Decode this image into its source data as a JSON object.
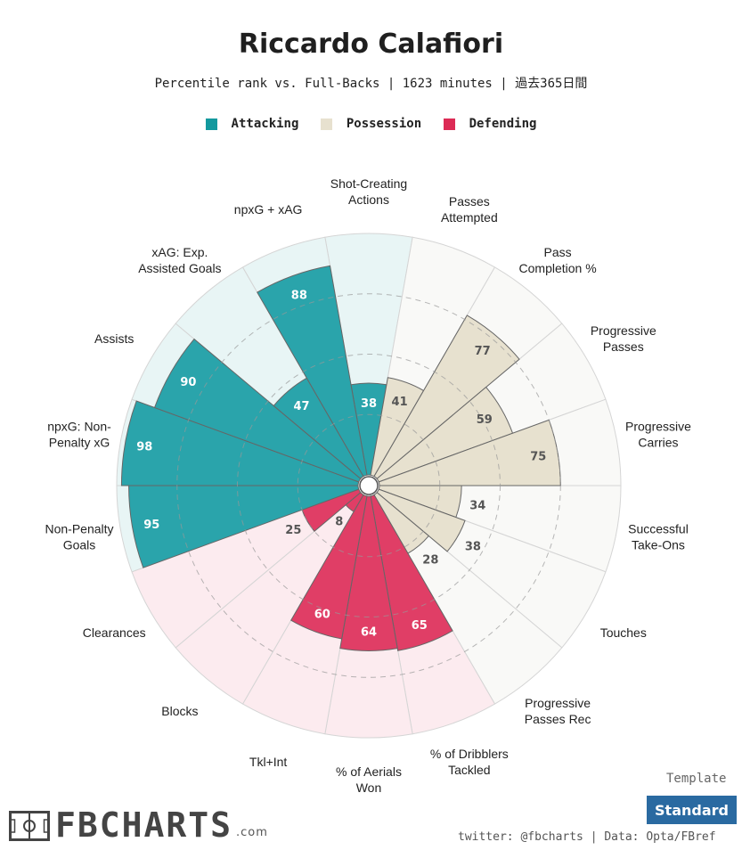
{
  "title": "Riccardo Calafiori",
  "subtitle": "Percentile rank vs. Full-Backs | 1623 minutes | 過去365日間",
  "legend": [
    {
      "label": "Attacking",
      "color": "#2aa4ab"
    },
    {
      "label": "Possession",
      "color": "#e7e1cf"
    },
    {
      "label": "Defending",
      "color": "#e03e66"
    }
  ],
  "colors": {
    "attacking_fill": "#2aa4ab",
    "attacking_bg": "#e8f5f5",
    "possession_fill": "#e7e1cf",
    "possession_bg": "#f9f9f7",
    "defending_fill": "#e03e66",
    "defending_bg": "#fcebef"
  },
  "chart_data": {
    "type": "polar-bar",
    "title": "Riccardo Calafiori",
    "range": [
      0,
      100
    ],
    "rings": [
      25,
      50,
      75
    ],
    "metrics": [
      {
        "label": "Shot-Creating Actions",
        "value": 38,
        "group": "Attacking"
      },
      {
        "label": "Passes Attempted",
        "value": 41,
        "group": "Possession"
      },
      {
        "label": "Pass Completion %",
        "value": 77,
        "group": "Possession"
      },
      {
        "label": "Progressive Passes",
        "value": 59,
        "group": "Possession"
      },
      {
        "label": "Progressive Carries",
        "value": 75,
        "group": "Possession"
      },
      {
        "label": "Successful Take-Ons",
        "value": 34,
        "group": "Possession"
      },
      {
        "label": "Touches",
        "value": 38,
        "group": "Possession"
      },
      {
        "label": "Progressive Passes Rec",
        "value": 28,
        "group": "Possession"
      },
      {
        "label": "% of Dribblers Tackled",
        "value": 65,
        "group": "Defending"
      },
      {
        "label": "% of Aerials Won",
        "value": 64,
        "group": "Defending"
      },
      {
        "label": "Tkl+Int",
        "value": 60,
        "group": "Defending"
      },
      {
        "label": "Blocks",
        "value": 8,
        "group": "Defending"
      },
      {
        "label": "Clearances",
        "value": 25,
        "group": "Defending"
      },
      {
        "label": "Non-Penalty Goals",
        "value": 95,
        "group": "Attacking"
      },
      {
        "label": "npxG: Non-Penalty xG",
        "value": 98,
        "group": "Attacking"
      },
      {
        "label": "Assists",
        "value": 90,
        "group": "Attacking"
      },
      {
        "label": "xAG: Exp. Assisted Goals",
        "value": 47,
        "group": "Attacking"
      },
      {
        "label": "npxG + xAG",
        "value": 88,
        "group": "Attacking"
      }
    ],
    "label_lines": [
      [
        "Shot-Creating",
        "Actions"
      ],
      [
        "Passes",
        "Attempted"
      ],
      [
        "Pass",
        "Completion %"
      ],
      [
        "Progressive",
        "Passes"
      ],
      [
        "Progressive",
        "Carries"
      ],
      [
        "Successful",
        "Take-Ons"
      ],
      [
        "Touches"
      ],
      [
        "Progressive",
        "Passes Rec"
      ],
      [
        "% of Dribblers",
        "Tackled"
      ],
      [
        "% of Aerials",
        "Won"
      ],
      [
        "Tkl+Int"
      ],
      [
        "Blocks"
      ],
      [
        "Clearances"
      ],
      [
        "Non-Penalty",
        "Goals"
      ],
      [
        "npxG: Non-",
        "Penalty xG"
      ],
      [
        "Assists"
      ],
      [
        "xAG: Exp.",
        "Assisted Goals"
      ],
      [
        "npxG + xAG"
      ]
    ]
  },
  "template": {
    "label": "Template",
    "value": "Standard"
  },
  "credit": "twitter: @fbcharts | Data: Opta/FBref",
  "logo": {
    "text": "FBCHARTS",
    "suffix": ".com"
  }
}
